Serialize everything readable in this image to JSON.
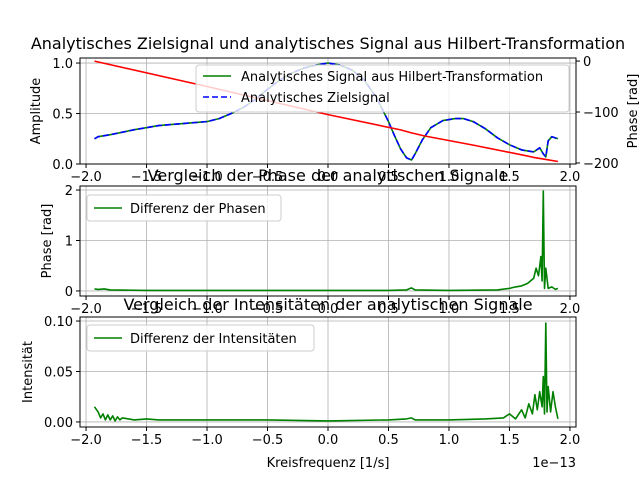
{
  "chart_data": [
    {
      "type": "line",
      "title": "Analytisches Zielsignal und analytisches Signal aus Hilbert-Transformation",
      "xlabel": "",
      "ylabel": "Amplitude",
      "y2label": "Phase [rad]",
      "xlim": [
        -2.05,
        2.05
      ],
      "ylim": [
        0,
        1.05
      ],
      "y2lim": [
        -202,
        6
      ],
      "xticks": [
        "−2.0",
        "−1.5",
        "−1.0",
        "−0.5",
        "0.0",
        "0.5",
        "1.0",
        "1.5",
        "2.0"
      ],
      "xtick_values": [
        -2.0,
        -1.5,
        -1.0,
        -0.5,
        0.0,
        0.5,
        1.0,
        1.5,
        2.0
      ],
      "yticks": [
        "0.0",
        "0.5",
        "1.0"
      ],
      "ytick_values": [
        0,
        0.5,
        1.0
      ],
      "y2ticks": [
        "0",
        "−100",
        "−200"
      ],
      "y2tick_values": [
        0,
        -100,
        -200
      ],
      "grid": true,
      "legend_position": "top-right",
      "series": [
        {
          "name": "Analytisches Signal aus Hilbert-Transformation",
          "color": "#008000",
          "style": "solid",
          "axis": "left",
          "x": [
            -1.93,
            -1.9,
            -1.8,
            -1.6,
            -1.4,
            -1.2,
            -1.0,
            -0.9,
            -0.8,
            -0.7,
            -0.6,
            -0.5,
            -0.4,
            -0.3,
            -0.2,
            -0.1,
            0.0,
            0.1,
            0.2,
            0.3,
            0.4,
            0.5,
            0.55,
            0.6,
            0.65,
            0.69,
            0.72,
            0.78,
            0.85,
            0.95,
            1.05,
            1.12,
            1.2,
            1.3,
            1.4,
            1.5,
            1.6,
            1.7,
            1.75,
            1.78,
            1.8,
            1.82,
            1.85,
            1.9
          ],
          "y": [
            0.25,
            0.27,
            0.29,
            0.34,
            0.38,
            0.4,
            0.42,
            0.45,
            0.5,
            0.56,
            0.64,
            0.74,
            0.83,
            0.9,
            0.95,
            0.98,
            1.0,
            0.98,
            0.93,
            0.83,
            0.66,
            0.42,
            0.28,
            0.15,
            0.06,
            0.04,
            0.1,
            0.24,
            0.36,
            0.43,
            0.45,
            0.45,
            0.42,
            0.35,
            0.26,
            0.19,
            0.14,
            0.12,
            0.16,
            0.1,
            0.07,
            0.23,
            0.27,
            0.25
          ]
        },
        {
          "name": "Analytisches Zielsignal",
          "color": "#0000ff",
          "style": "dashed",
          "axis": "left",
          "x": [
            -1.93,
            -1.9,
            -1.8,
            -1.6,
            -1.4,
            -1.2,
            -1.0,
            -0.9,
            -0.8,
            -0.7,
            -0.6,
            -0.5,
            -0.4,
            -0.3,
            -0.2,
            -0.1,
            0.0,
            0.1,
            0.2,
            0.3,
            0.4,
            0.5,
            0.55,
            0.6,
            0.65,
            0.69,
            0.72,
            0.78,
            0.85,
            0.95,
            1.05,
            1.12,
            1.2,
            1.3,
            1.4,
            1.5,
            1.6,
            1.7,
            1.75,
            1.78,
            1.8,
            1.82,
            1.85,
            1.9
          ],
          "y": [
            0.25,
            0.27,
            0.29,
            0.34,
            0.38,
            0.4,
            0.42,
            0.45,
            0.5,
            0.56,
            0.64,
            0.74,
            0.83,
            0.9,
            0.95,
            0.98,
            1.0,
            0.98,
            0.93,
            0.83,
            0.66,
            0.42,
            0.28,
            0.15,
            0.06,
            0.04,
            0.1,
            0.24,
            0.36,
            0.43,
            0.45,
            0.45,
            0.42,
            0.35,
            0.26,
            0.19,
            0.14,
            0.12,
            0.16,
            0.1,
            0.07,
            0.23,
            0.27,
            0.25
          ]
        },
        {
          "name": "",
          "color": "#ff0000",
          "style": "solid",
          "axis": "right",
          "x": [
            -1.93,
            -1.0,
            0.0,
            0.6,
            0.69,
            0.8,
            1.2,
            1.6,
            1.7,
            1.8,
            1.9
          ],
          "y": [
            0,
            -50,
            -105,
            -135,
            -141,
            -147,
            -165,
            -184,
            -189,
            -193,
            -197
          ]
        }
      ]
    },
    {
      "type": "line",
      "title": "Vergleich der Phase der analytischen Signale",
      "xlabel": "",
      "ylabel": "Phase [rad]",
      "xlim": [
        -2.05,
        2.05
      ],
      "ylim": [
        -0.1,
        2.08
      ],
      "xticks": [
        "−2.0",
        "−1.5",
        "−1.0",
        "−0.5",
        "0.0",
        "0.5",
        "1.0",
        "1.5",
        "2.0"
      ],
      "xtick_values": [
        -2.0,
        -1.5,
        -1.0,
        -0.5,
        0.0,
        0.5,
        1.0,
        1.5,
        2.0
      ],
      "yticks": [
        "0",
        "1",
        "2"
      ],
      "ytick_values": [
        0,
        1,
        2
      ],
      "grid": true,
      "legend_position": "top-left",
      "series": [
        {
          "name": "Differenz der Phasen",
          "color": "#008000",
          "style": "solid",
          "x": [
            -1.93,
            -1.9,
            -1.85,
            -1.8,
            -1.5,
            -1.0,
            -0.5,
            0.0,
            0.5,
            0.65,
            0.69,
            0.72,
            1.0,
            1.4,
            1.5,
            1.55,
            1.6,
            1.65,
            1.7,
            1.72,
            1.74,
            1.76,
            1.77,
            1.78,
            1.79,
            1.8,
            1.82,
            1.85,
            1.88,
            1.9
          ],
          "y": [
            0.04,
            0.03,
            0.04,
            0.02,
            0.01,
            0.01,
            0.01,
            0.01,
            0.01,
            0.02,
            0.06,
            0.02,
            0.01,
            0.02,
            0.05,
            0.08,
            0.1,
            0.15,
            0.25,
            0.45,
            0.3,
            0.68,
            0.2,
            1.98,
            0.05,
            0.45,
            0.05,
            0.08,
            0.03,
            0.05
          ]
        }
      ]
    },
    {
      "type": "line",
      "title": "Vergleich der Intensitäten der analytischen Signale",
      "xlabel": "Kreisfrequenz [1/s]",
      "ylabel": "Intensität",
      "x_offset_label": "1e−13",
      "xlim": [
        -2.05,
        2.05
      ],
      "ylim": [
        -0.005,
        0.104
      ],
      "xticks": [
        "−2.0",
        "−1.5",
        "−1.0",
        "−0.5",
        "0.0",
        "0.5",
        "1.0",
        "1.5",
        "2.0"
      ],
      "xtick_values": [
        -2.0,
        -1.5,
        -1.0,
        -0.5,
        0.0,
        0.5,
        1.0,
        1.5,
        2.0
      ],
      "yticks": [
        "0.00",
        "0.05",
        "0.10"
      ],
      "ytick_values": [
        0,
        0.05,
        0.1
      ],
      "grid": true,
      "legend_position": "top-left",
      "series": [
        {
          "name": "Differenz der Intensitäten",
          "color": "#008000",
          "style": "solid",
          "x": [
            -1.93,
            -1.9,
            -1.88,
            -1.86,
            -1.84,
            -1.82,
            -1.8,
            -1.78,
            -1.76,
            -1.74,
            -1.72,
            -1.7,
            -1.6,
            -1.5,
            -1.4,
            -1.2,
            -1.0,
            -0.8,
            -0.5,
            0.0,
            0.5,
            0.65,
            0.69,
            0.72,
            1.0,
            1.3,
            1.45,
            1.5,
            1.55,
            1.6,
            1.63,
            1.66,
            1.69,
            1.71,
            1.73,
            1.75,
            1.77,
            1.78,
            1.79,
            1.8,
            1.81,
            1.82,
            1.84,
            1.86,
            1.88,
            1.9
          ],
          "y": [
            0.015,
            0.01,
            0.004,
            0.008,
            0.002,
            0.007,
            0.002,
            0.006,
            0.001,
            0.005,
            0.002,
            0.004,
            0.002,
            0.003,
            0.002,
            0.002,
            0.002,
            0.002,
            0.002,
            0.001,
            0.002,
            0.003,
            0.004,
            0.002,
            0.002,
            0.003,
            0.004,
            0.008,
            0.003,
            0.012,
            0.004,
            0.018,
            0.008,
            0.027,
            0.012,
            0.03,
            0.015,
            0.045,
            0.008,
            0.098,
            0.01,
            0.035,
            0.01,
            0.03,
            0.015,
            0.003
          ]
        }
      ]
    }
  ]
}
